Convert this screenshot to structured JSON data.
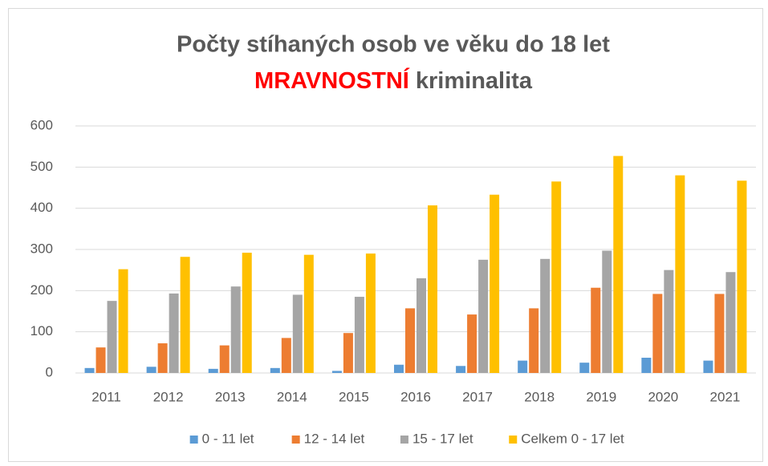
{
  "chart_data": {
    "type": "bar",
    "title": [
      "Počty stíhaných osob ve věku do 18 let",
      "MRAVNOSTNÍ",
      "kriminalita"
    ],
    "categories": [
      "2011",
      "2012",
      "2013",
      "2014",
      "2015",
      "2016",
      "2017",
      "2018",
      "2019",
      "2020",
      "2021"
    ],
    "series": [
      {
        "name": "0 - 11 let",
        "color": "#5b9bd5",
        "values": [
          12,
          15,
          10,
          12,
          5,
          20,
          17,
          30,
          25,
          37,
          30
        ]
      },
      {
        "name": "12 - 14 let",
        "color": "#ed7d31",
        "values": [
          62,
          72,
          67,
          85,
          97,
          157,
          142,
          157,
          207,
          192,
          192
        ]
      },
      {
        "name": "15 - 17 let",
        "color": "#a5a5a5",
        "values": [
          175,
          193,
          210,
          190,
          185,
          230,
          275,
          277,
          297,
          250,
          245
        ]
      },
      {
        "name": "Celkem 0 - 17 let",
        "color": "#ffc000",
        "values": [
          252,
          282,
          292,
          287,
          290,
          407,
          433,
          465,
          527,
          480,
          467
        ]
      }
    ],
    "ylim": [
      0,
      600
    ],
    "yticks": [
      0,
      100,
      200,
      300,
      400,
      500,
      600
    ],
    "grid": true,
    "legend": "bottom"
  }
}
